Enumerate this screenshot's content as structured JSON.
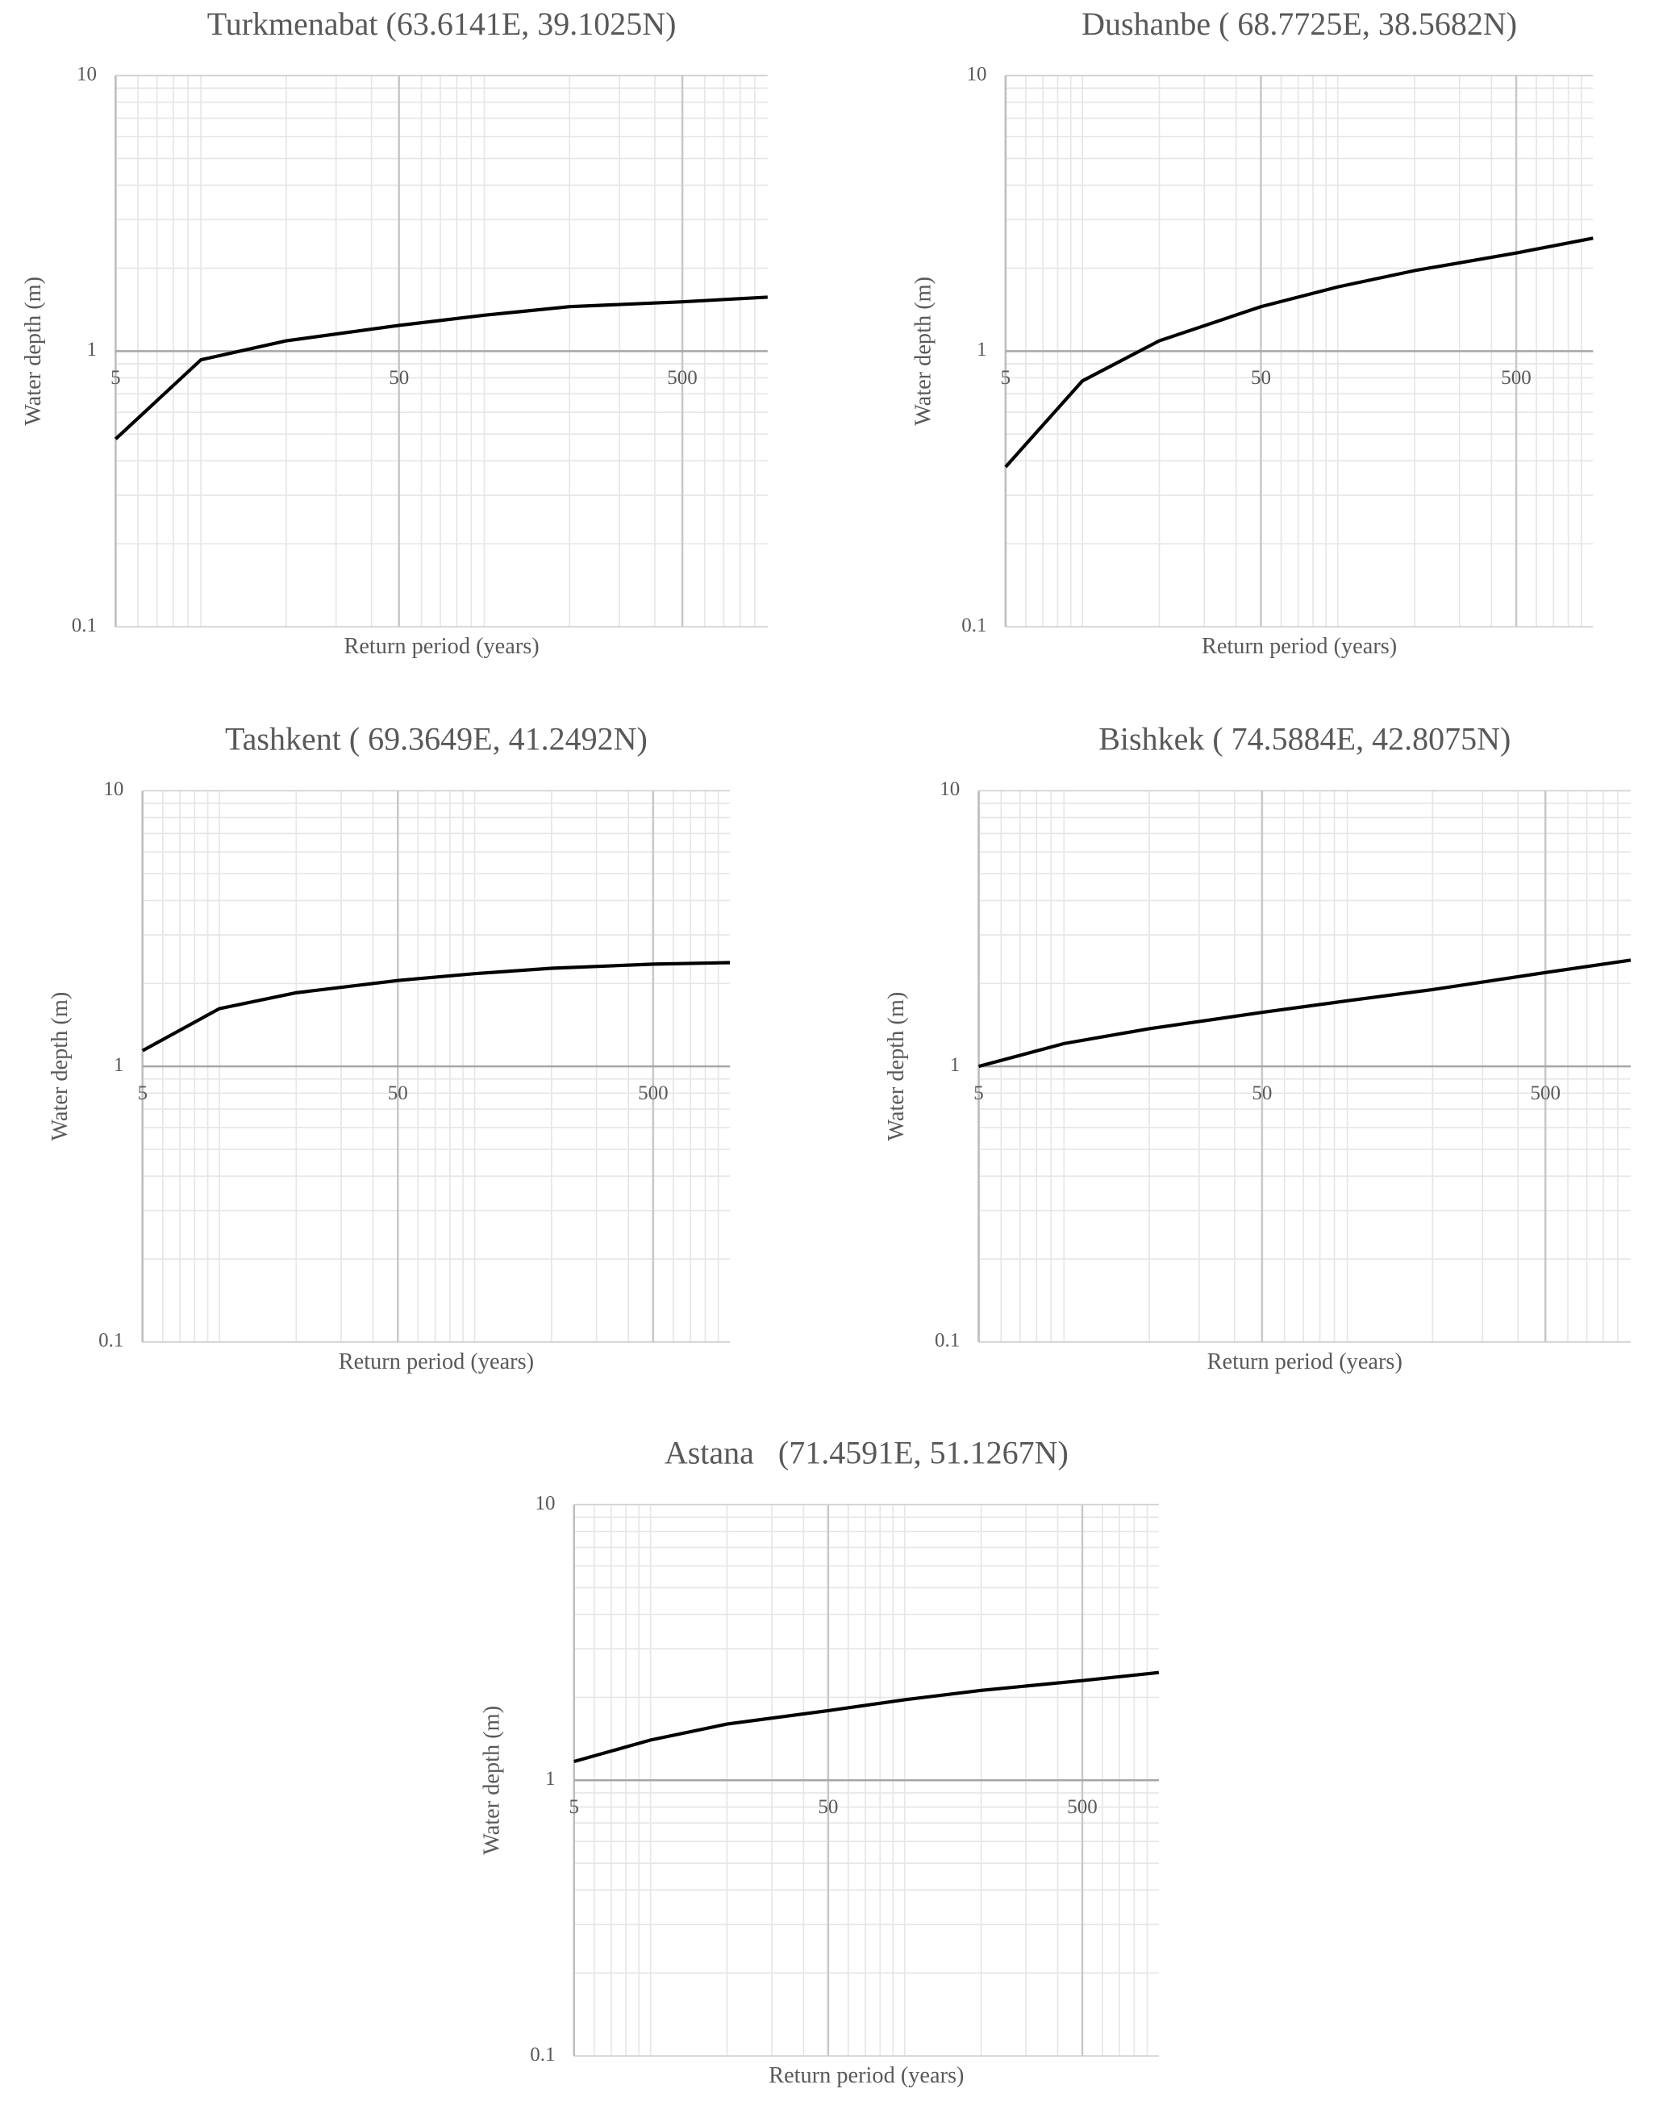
{
  "chart_data": [
    {
      "type": "line",
      "title": "Turkmenabat (63.6141E, 39.1025N)",
      "x_label": "Return period (years)",
      "y_label": "Water depth (m)",
      "x": [
        5,
        10,
        20,
        50,
        100,
        200,
        500,
        1000
      ],
      "series": [
        {
          "color": "#000000",
          "values": [
            0.48,
            0.93,
            1.09,
            1.24,
            1.35,
            1.45,
            1.51,
            1.57
          ]
        }
      ],
      "xlim": [
        5,
        1000
      ],
      "ylim": [
        0.1,
        10
      ],
      "xticks": [
        5,
        50,
        500
      ],
      "yticks": [
        0.1,
        1,
        10
      ],
      "log_x": true,
      "log_y": true,
      "grid": true
    },
    {
      "type": "line",
      "title": "Dushanbe ( 68.7725E, 38.5682N)",
      "x_label": "Return period (years)",
      "y_label": "Water depth (m)",
      "x": [
        5,
        10,
        20,
        50,
        100,
        200,
        500,
        1000
      ],
      "series": [
        {
          "color": "#000000",
          "values": [
            0.38,
            0.78,
            1.09,
            1.45,
            1.71,
            1.96,
            2.27,
            2.57
          ]
        }
      ],
      "xlim": [
        5,
        1000
      ],
      "ylim": [
        0.1,
        10
      ],
      "xticks": [
        5,
        50,
        500
      ],
      "yticks": [
        0.1,
        1,
        10
      ],
      "log_x": true,
      "log_y": true,
      "grid": true
    },
    {
      "type": "line",
      "title": "Tashkent ( 69.3649E, 41.2492N)",
      "x_label": "Return period (years)",
      "y_label": "Water depth (m)",
      "x": [
        5,
        10,
        20,
        50,
        100,
        200,
        500,
        1000
      ],
      "series": [
        {
          "color": "#000000",
          "values": [
            1.14,
            1.62,
            1.85,
            2.05,
            2.17,
            2.27,
            2.35,
            2.38
          ]
        }
      ],
      "xlim": [
        5,
        1000
      ],
      "ylim": [
        0.1,
        10
      ],
      "xticks": [
        5,
        50,
        500
      ],
      "yticks": [
        0.1,
        1,
        10
      ],
      "log_x": true,
      "log_y": true,
      "grid": true
    },
    {
      "type": "line",
      "title": "Bishkek ( 74.5884E, 42.8075N)",
      "x_label": "Return period (years)",
      "y_label": "Water depth (m)",
      "x": [
        5,
        10,
        20,
        50,
        100,
        200,
        500,
        1000
      ],
      "series": [
        {
          "color": "#000000",
          "values": [
            1.0,
            1.21,
            1.37,
            1.57,
            1.73,
            1.9,
            2.19,
            2.43
          ]
        }
      ],
      "xlim": [
        5,
        1000
      ],
      "ylim": [
        0.1,
        10
      ],
      "xticks": [
        5,
        50,
        500
      ],
      "yticks": [
        0.1,
        1,
        10
      ],
      "log_x": true,
      "log_y": true,
      "grid": true
    },
    {
      "type": "line",
      "title": "Astana   (71.4591E, 51.1267N)",
      "x_label": "Return period (years)",
      "y_label": "Water depth (m)",
      "x": [
        5,
        10,
        20,
        50,
        100,
        200,
        500,
        1000
      ],
      "series": [
        {
          "color": "#000000",
          "values": [
            1.17,
            1.4,
            1.6,
            1.79,
            1.96,
            2.12,
            2.3,
            2.46
          ]
        }
      ],
      "xlim": [
        5,
        1000
      ],
      "ylim": [
        0.1,
        10
      ],
      "xticks": [
        5,
        50,
        500
      ],
      "yticks": [
        0.1,
        1,
        10
      ],
      "log_x": true,
      "log_y": true,
      "grid": true
    }
  ]
}
